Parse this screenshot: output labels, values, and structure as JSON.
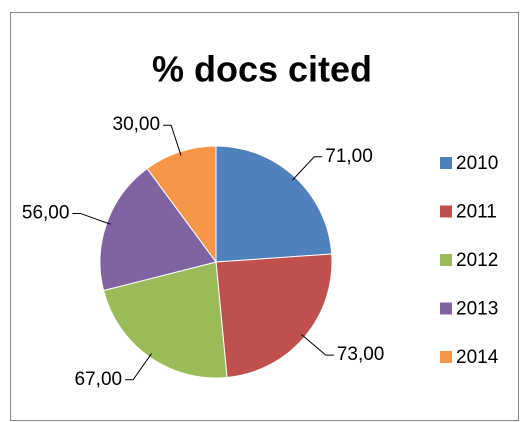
{
  "chart_data": {
    "type": "pie",
    "title": "% docs cited",
    "categories": [
      "2010",
      "2011",
      "2012",
      "2013",
      "2014"
    ],
    "values": [
      71,
      73,
      67,
      56,
      30
    ],
    "value_labels": [
      "71,00",
      "73,00",
      "67,00",
      "56,00",
      "30,00"
    ],
    "colors": [
      "#4f81bd",
      "#c0504d",
      "#9bbb59",
      "#8064a2",
      "#f79646"
    ],
    "legend": "right"
  }
}
